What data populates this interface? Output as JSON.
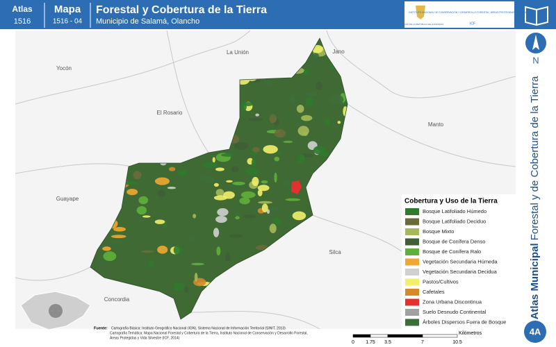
{
  "header": {
    "atlas_label": "Atlas",
    "atlas_code": "1516",
    "map_label": "Mapa",
    "map_code": "1516 - 04",
    "title": "Forestal y Cobertura de la Tierra",
    "subtitle": "Municipio de Salamá, Olancho"
  },
  "logo": {
    "government": "GOBIERNO DE LA REPÚBLICA DE HONDURAS",
    "institute": "INSTITUTO NACIONAL DE CONSERVACIÓN Y DESARROLLO FORESTAL, ÁREAS PROTEGIDAS Y VIDA SILVESTRE",
    "acronym": "ICF"
  },
  "side_title": {
    "prefix": "Atlas Municipal",
    "text": "Forestal y de Cobertura de la Tierra"
  },
  "north": "N",
  "places": [
    "La Unión",
    "Jano",
    "Yocón",
    "El Rosario",
    "Manto",
    "Guayape",
    "Silca",
    "Concordia"
  ],
  "legend": {
    "title": "Cobertura y Uso de la Tierra",
    "items": [
      {
        "label": "Bosque Latifoliado Húmedo",
        "color": "#2f7a2c"
      },
      {
        "label": "Bosque Latifoliado Deciduo",
        "color": "#6b6b3a"
      },
      {
        "label": "Bosque Mixto",
        "color": "#a6b85a"
      },
      {
        "label": "Bosque de Conífera Denso",
        "color": "#3f5f36"
      },
      {
        "label": "Bosque de Conífera Ralo",
        "color": "#5fb03a"
      },
      {
        "label": "Vegetación Secundaria Húmeda",
        "color": "#f0a830"
      },
      {
        "label": "Vegetación Secundaria Decidua",
        "color": "#d0d0d0"
      },
      {
        "label": "Pastos/Cultivos",
        "color": "#f2f06a"
      },
      {
        "label": "Cafetales",
        "color": "#d48a2a"
      },
      {
        "label": "Zona Urbana Discontinua",
        "color": "#e53030"
      },
      {
        "label": "Suelo Desnudo Continental",
        "color": "#a0a0a0"
      },
      {
        "label": "Árboles Dispersos Fuera de Bosque",
        "color": "#3d6e3a"
      }
    ]
  },
  "scale": {
    "ticks": [
      0,
      1.75,
      3.5,
      7,
      10.5
    ],
    "unit": "Kilómetros"
  },
  "sources": {
    "label": "Fuente:",
    "lines": [
      "Cartografía Básica: Instituto Geográfico Nacional (IGN), Sistema Nacional de Información Territorial (SINIT, 2013)",
      "Cartografía Temática: Mapa Nacional Forestal y Cobertura de la Tierra, Instituto Nacional de Conservación y Desarrollo Forestal,",
      "Áreas Protegidas y Vida Silvestre (ICF, 2014)"
    ]
  },
  "page_code": "4A"
}
